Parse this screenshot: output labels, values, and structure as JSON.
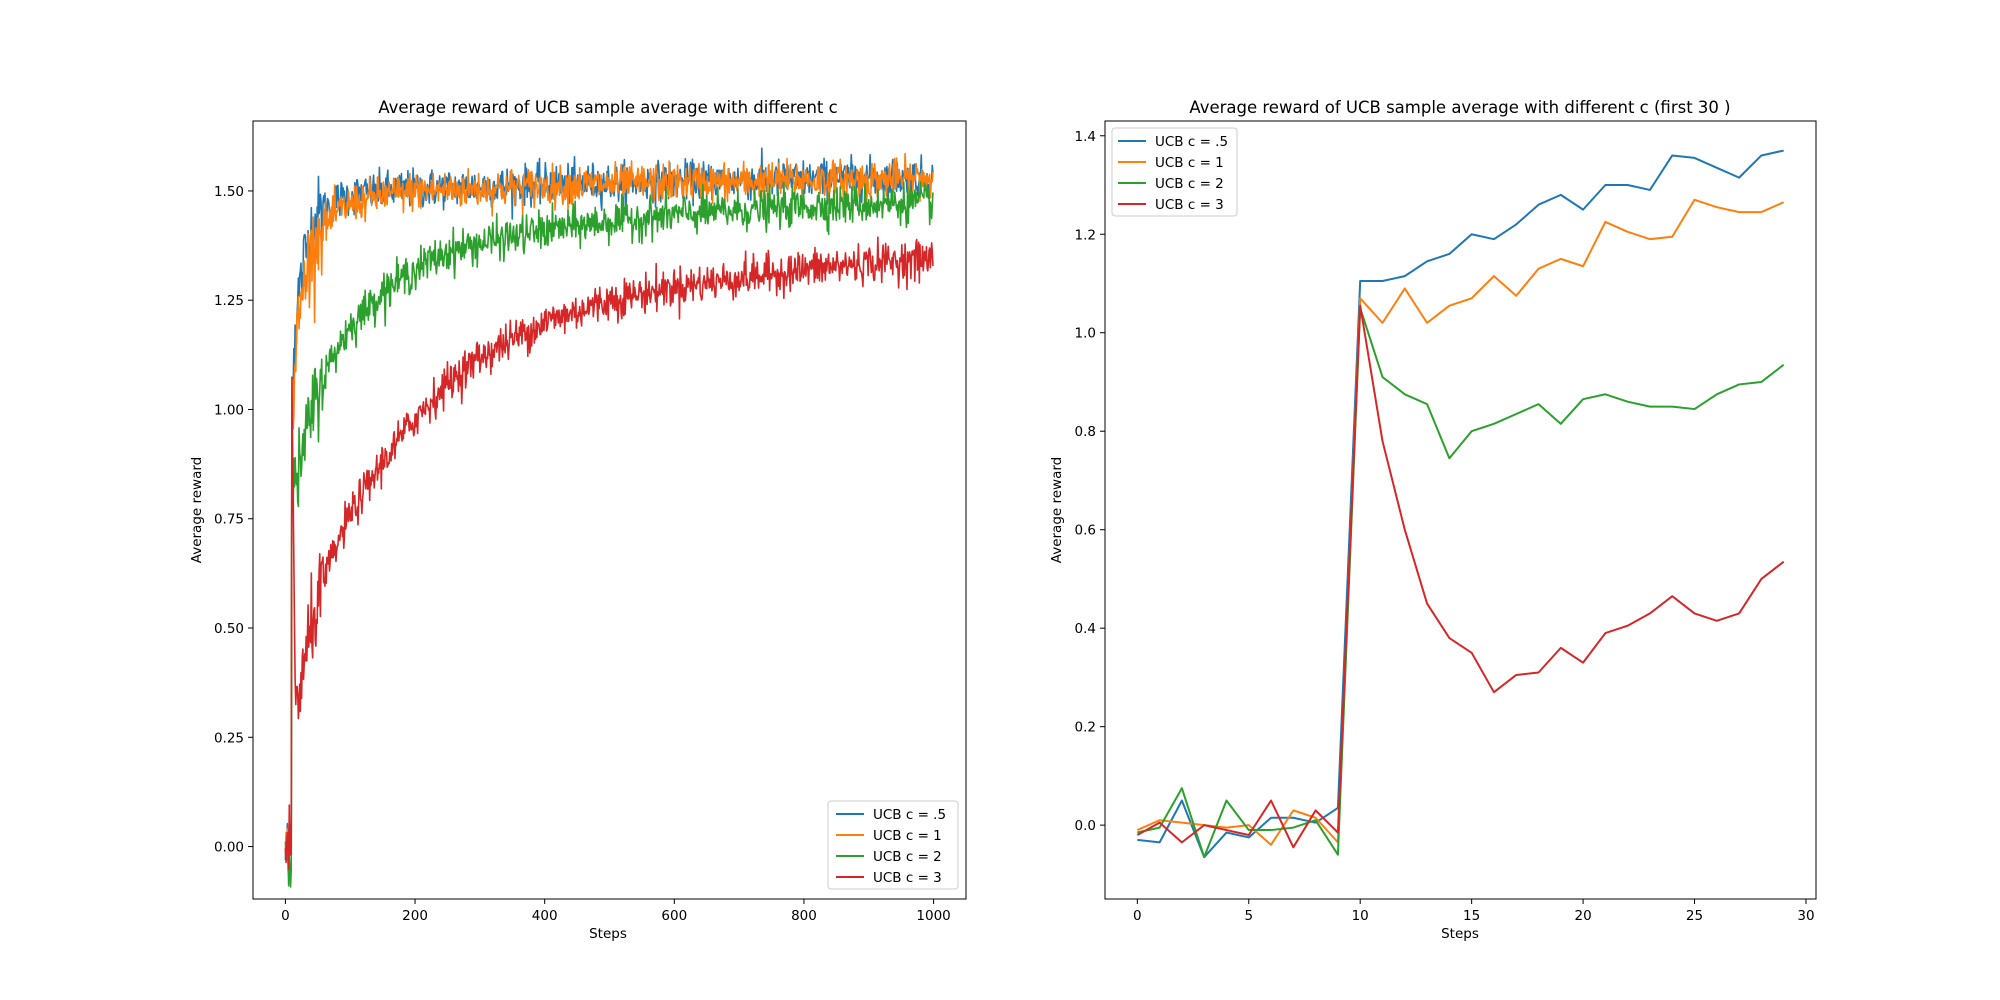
{
  "colors": {
    "c05": "#1f77b4",
    "c1": "#ff7f0e",
    "c2": "#2ca02c",
    "c3": "#d62728"
  },
  "chart_data": [
    {
      "type": "line",
      "title": "Average reward of UCB sample average with different c",
      "xlabel": "Steps",
      "ylabel": "Average reward",
      "xlim": [
        -50,
        1050
      ],
      "ylim": [
        -0.12,
        1.66
      ],
      "xticks": [
        0,
        200,
        400,
        600,
        800,
        1000
      ],
      "xtick_labels": [
        "0",
        "200",
        "400",
        "600",
        "800",
        "1000"
      ],
      "yticks": [
        0.0,
        0.25,
        0.5,
        0.75,
        1.0,
        1.25,
        1.5
      ],
      "ytick_labels": [
        "0.00",
        "0.25",
        "0.50",
        "0.75",
        "1.00",
        "1.25",
        "1.50"
      ],
      "legend_position": "lower-right",
      "grid": false,
      "n_steps": 1000,
      "series": [
        {
          "name": "UCB c = .5",
          "color_key": "c05",
          "x": [
            0,
            5,
            9,
            10,
            12,
            15,
            20,
            30,
            40,
            50,
            60,
            80,
            100,
            150,
            200,
            300,
            400,
            500,
            600,
            700,
            800,
            900,
            1000
          ],
          "y": [
            -0.02,
            0.02,
            0.04,
            1.06,
            1.1,
            1.18,
            1.26,
            1.35,
            1.41,
            1.44,
            1.46,
            1.48,
            1.49,
            1.5,
            1.505,
            1.51,
            1.515,
            1.52,
            1.522,
            1.525,
            1.527,
            1.53,
            1.53
          ]
        },
        {
          "name": "UCB c = 1",
          "color_key": "c1",
          "x": [
            0,
            5,
            9,
            10,
            12,
            15,
            20,
            30,
            40,
            50,
            60,
            80,
            100,
            150,
            200,
            300,
            400,
            500,
            600,
            700,
            800,
            900,
            1000
          ],
          "y": [
            -0.02,
            0.0,
            0.0,
            1.05,
            1.02,
            1.1,
            1.2,
            1.3,
            1.36,
            1.4,
            1.42,
            1.45,
            1.47,
            1.49,
            1.5,
            1.505,
            1.51,
            1.515,
            1.52,
            1.52,
            1.525,
            1.525,
            1.53
          ]
        },
        {
          "name": "UCB c = 2",
          "color_key": "c2",
          "x": [
            0,
            5,
            9,
            10,
            12,
            15,
            20,
            30,
            40,
            50,
            60,
            80,
            100,
            150,
            200,
            250,
            300,
            400,
            500,
            600,
            700,
            800,
            900,
            1000
          ],
          "y": [
            -0.02,
            0.02,
            -0.05,
            1.05,
            0.8,
            0.82,
            0.85,
            0.92,
            0.99,
            1.04,
            1.08,
            1.14,
            1.19,
            1.27,
            1.32,
            1.36,
            1.38,
            1.41,
            1.43,
            1.445,
            1.455,
            1.465,
            1.47,
            1.475
          ]
        },
        {
          "name": "UCB c = 3",
          "color_key": "c3",
          "x": [
            0,
            5,
            9,
            10,
            12,
            15,
            20,
            30,
            40,
            50,
            60,
            80,
            100,
            150,
            200,
            250,
            300,
            400,
            500,
            600,
            700,
            800,
            900,
            1000
          ],
          "y": [
            -0.02,
            0.0,
            -0.02,
            1.04,
            0.78,
            0.38,
            0.33,
            0.42,
            0.5,
            0.56,
            0.61,
            0.69,
            0.76,
            0.88,
            0.98,
            1.06,
            1.12,
            1.2,
            1.25,
            1.28,
            1.3,
            1.32,
            1.335,
            1.345
          ]
        }
      ]
    },
    {
      "type": "line",
      "title": "Average reward of UCB sample average with different c (first 30 )",
      "xlabel": "Steps",
      "ylabel": "Average reward",
      "xlim": [
        -1.45,
        30.45
      ],
      "ylim": [
        -0.15,
        1.43
      ],
      "xticks": [
        0,
        5,
        10,
        15,
        20,
        25,
        30
      ],
      "xtick_labels": [
        "0",
        "5",
        "10",
        "15",
        "20",
        "25",
        "30"
      ],
      "yticks": [
        0.0,
        0.2,
        0.4,
        0.6,
        0.8,
        1.0,
        1.2,
        1.4
      ],
      "ytick_labels": [
        "0.0",
        "0.2",
        "0.4",
        "0.6",
        "0.8",
        "1.0",
        "1.2",
        "1.4"
      ],
      "legend_position": "upper-left",
      "grid": false,
      "x": [
        0,
        1,
        2,
        3,
        4,
        5,
        6,
        7,
        8,
        9,
        10,
        11,
        12,
        13,
        14,
        15,
        16,
        17,
        18,
        19,
        20,
        21,
        22,
        23,
        24,
        25,
        26,
        27,
        28,
        29
      ],
      "series": [
        {
          "name": "UCB c = .5",
          "color_key": "c05",
          "values": [
            -0.03,
            -0.035,
            0.05,
            -0.065,
            -0.015,
            -0.025,
            0.015,
            0.015,
            0.005,
            0.035,
            1.105,
            1.105,
            1.115,
            1.145,
            1.16,
            1.2,
            1.19,
            1.22,
            1.26,
            1.28,
            1.25,
            1.3,
            1.3,
            1.29,
            1.36,
            1.355,
            1.335,
            1.315,
            1.36,
            1.37
          ]
        },
        {
          "name": "UCB c = 1",
          "color_key": "c1",
          "values": [
            -0.01,
            0.01,
            0.005,
            0.0,
            -0.005,
            0.0,
            -0.04,
            0.03,
            0.015,
            -0.035,
            1.07,
            1.02,
            1.09,
            1.02,
            1.055,
            1.07,
            1.115,
            1.075,
            1.13,
            1.15,
            1.135,
            1.225,
            1.205,
            1.19,
            1.195,
            1.27,
            1.255,
            1.245,
            1.245,
            1.265
          ]
        },
        {
          "name": "UCB c = 2",
          "color_key": "c2",
          "values": [
            -0.015,
            -0.005,
            0.075,
            -0.065,
            0.05,
            -0.01,
            -0.01,
            -0.005,
            0.01,
            -0.06,
            1.05,
            0.91,
            0.875,
            0.855,
            0.745,
            0.8,
            0.815,
            0.835,
            0.855,
            0.815,
            0.865,
            0.875,
            0.86,
            0.85,
            0.85,
            0.845,
            0.875,
            0.895,
            0.9,
            0.935
          ]
        },
        {
          "name": "UCB c = 3",
          "color_key": "c3",
          "values": [
            -0.02,
            0.005,
            -0.035,
            0.0,
            -0.01,
            -0.02,
            0.05,
            -0.045,
            0.03,
            -0.015,
            1.055,
            0.78,
            0.6,
            0.45,
            0.38,
            0.35,
            0.27,
            0.305,
            0.31,
            0.36,
            0.33,
            0.39,
            0.405,
            0.43,
            0.465,
            0.43,
            0.415,
            0.43,
            0.5,
            0.535
          ]
        }
      ]
    }
  ]
}
